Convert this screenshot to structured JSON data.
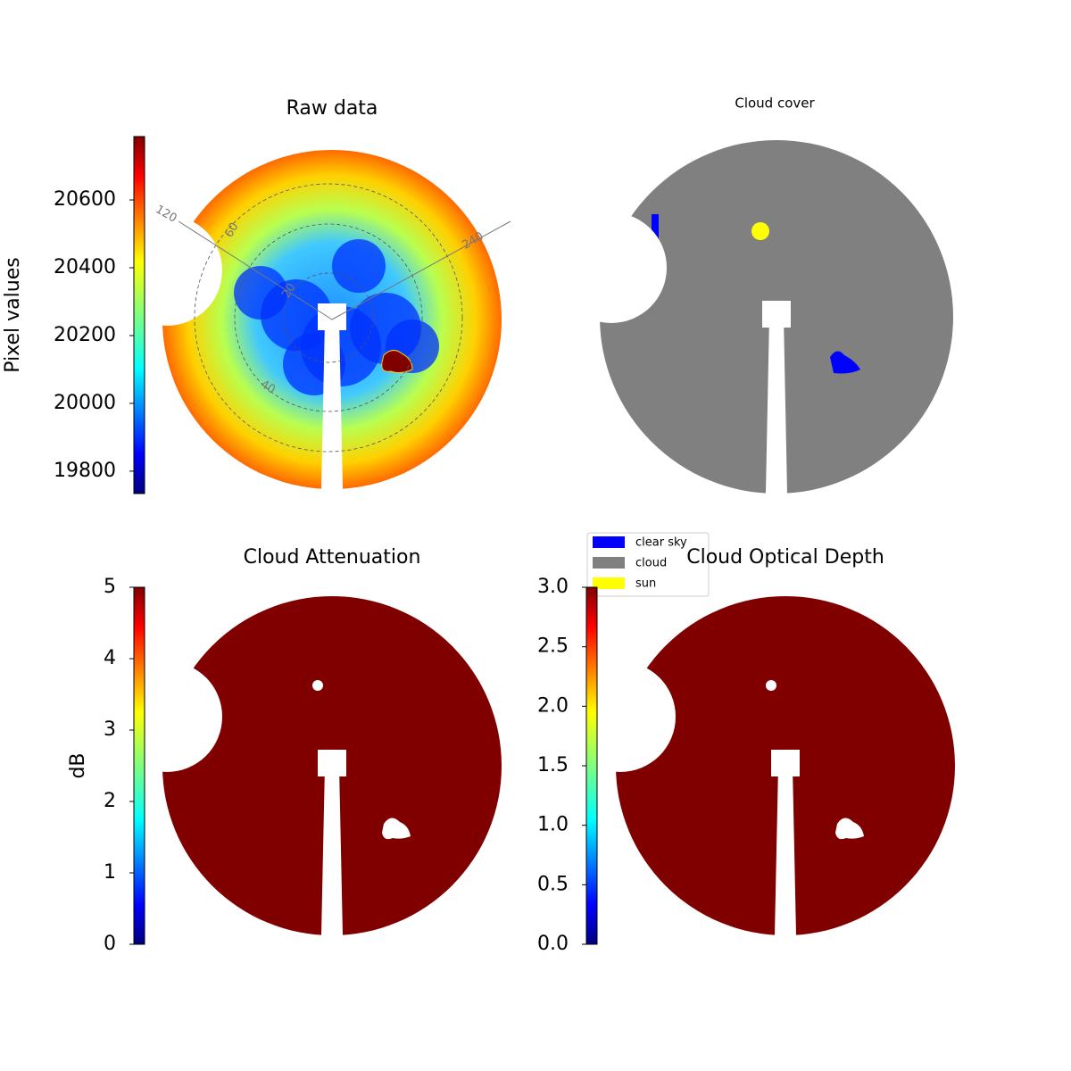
{
  "chart_data": [
    {
      "type": "image",
      "title": "Raw data",
      "colorbar_label": "Pixel values",
      "colormap": "jet",
      "ylim": [
        19734,
        20787
      ],
      "yticks": [
        19800,
        20000,
        20200,
        20400,
        20600
      ],
      "annotations": [
        "120",
        "60",
        "20",
        "240",
        "40"
      ]
    },
    {
      "type": "image",
      "title": "Cloud cover",
      "legend": [
        {
          "name": "clear sky",
          "color": "#0000ff"
        },
        {
          "name": "cloud",
          "color": "#808080"
        },
        {
          "name": "sun",
          "color": "#ffff00"
        }
      ]
    },
    {
      "type": "image",
      "title": "Cloud Attenuation",
      "colorbar_label": "dB",
      "colormap": "jet",
      "ylim": [
        0,
        5
      ],
      "yticks": [
        0,
        1,
        2,
        3,
        4,
        5
      ]
    },
    {
      "type": "image",
      "title": "Cloud Optical Depth",
      "colormap": "jet",
      "ylim": [
        0,
        3
      ],
      "yticks": [
        {
          "value": 0,
          "label": "0.0"
        },
        {
          "value": 0.5,
          "label": "0.5"
        },
        {
          "value": 1,
          "label": "1.0"
        },
        {
          "value": 1.5,
          "label": "1.5"
        },
        {
          "value": 2,
          "label": "2.0"
        },
        {
          "value": 2.5,
          "label": "2.5"
        },
        {
          "value": 3,
          "label": "3.0"
        }
      ]
    }
  ]
}
